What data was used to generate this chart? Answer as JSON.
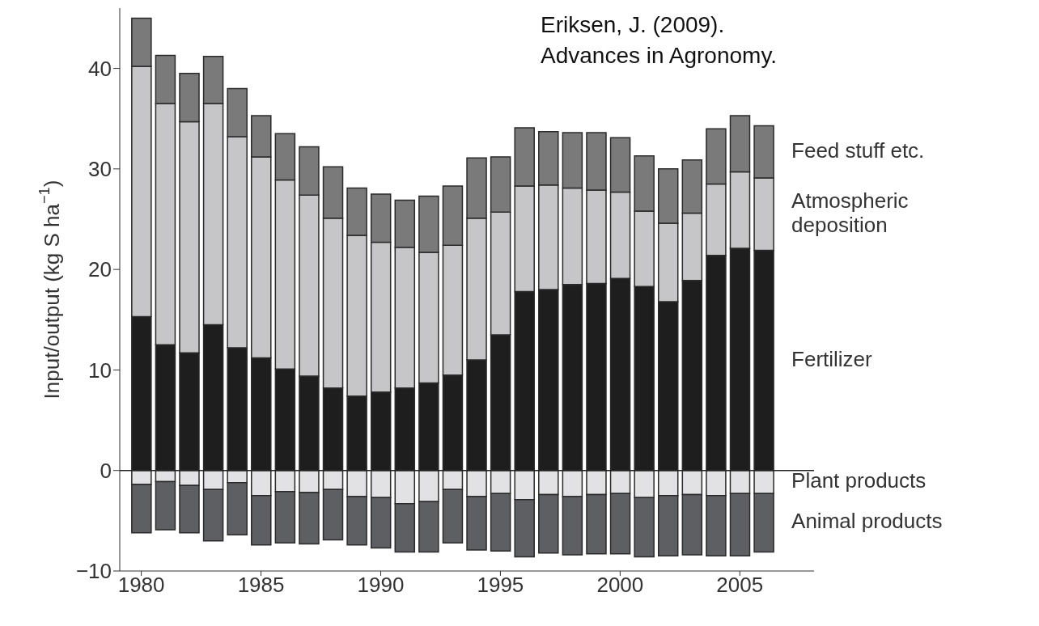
{
  "chart_data": {
    "type": "bar",
    "stacked": true,
    "x": [
      1980,
      1981,
      1982,
      1983,
      1984,
      1985,
      1986,
      1987,
      1988,
      1989,
      1990,
      1991,
      1992,
      1993,
      1994,
      1995,
      1996,
      1997,
      1998,
      1999,
      2000,
      2001,
      2002,
      2003,
      2004,
      2005,
      2006
    ],
    "series": [
      {
        "name": "Fertilizer",
        "color": "#1e1e1e",
        "values": [
          15.3,
          12.5,
          11.7,
          14.5,
          12.2,
          11.2,
          10.1,
          9.4,
          8.2,
          7.4,
          7.8,
          8.2,
          8.7,
          9.5,
          11.0,
          13.5,
          17.8,
          18.0,
          18.5,
          18.6,
          19.1,
          18.3,
          16.8,
          18.9,
          21.4,
          22.1,
          21.9
        ]
      },
      {
        "name": "Atmospheric deposition",
        "color": "#c6c6c8",
        "values": [
          24.9,
          24.0,
          23.0,
          22.0,
          21.0,
          20.0,
          18.8,
          18.0,
          16.9,
          16.0,
          14.9,
          14.0,
          13.0,
          12.9,
          14.1,
          12.2,
          10.5,
          10.4,
          9.6,
          9.3,
          8.6,
          7.5,
          7.8,
          6.7,
          7.1,
          7.6,
          7.2
        ]
      },
      {
        "name": "Feed stuff etc.",
        "color": "#7a7a7a",
        "values": [
          4.8,
          4.8,
          4.8,
          4.7,
          4.8,
          4.1,
          4.6,
          4.8,
          5.1,
          4.7,
          4.8,
          4.7,
          5.6,
          5.9,
          6.0,
          5.5,
          5.8,
          5.3,
          5.5,
          5.7,
          5.4,
          5.5,
          5.4,
          5.3,
          5.5,
          5.6,
          5.2
        ]
      },
      {
        "name": "Plant products",
        "color": "#e2e2e4",
        "values": [
          -1.4,
          -1.1,
          -1.5,
          -1.9,
          -1.2,
          -2.5,
          -2.1,
          -2.2,
          -1.9,
          -2.6,
          -2.7,
          -3.3,
          -3.1,
          -1.9,
          -2.6,
          -2.3,
          -2.9,
          -2.4,
          -2.6,
          -2.4,
          -2.3,
          -2.7,
          -2.5,
          -2.4,
          -2.5,
          -2.3,
          -2.3
        ]
      },
      {
        "name": "Animal products",
        "color": "#5e5f63",
        "values": [
          -4.8,
          -4.8,
          -4.7,
          -5.1,
          -5.2,
          -4.9,
          -5.1,
          -5.1,
          -5.0,
          -4.8,
          -5.0,
          -4.8,
          -5.0,
          -5.3,
          -5.3,
          -5.7,
          -5.7,
          -5.8,
          -5.8,
          -5.9,
          -6.0,
          -5.9,
          -6.0,
          -6.0,
          -6.0,
          -6.2,
          -5.8
        ]
      }
    ],
    "ylabel": "Input/output (kg S ha$^{−1}$)",
    "xlim": [
      1979.1,
      2008.1
    ],
    "xticks": [
      1980,
      1985,
      1990,
      1995,
      2000,
      2005
    ],
    "ylim": [
      -10,
      46
    ],
    "yticks": [
      -10,
      0,
      10,
      20,
      30,
      40
    ],
    "ref_lines": [
      {
        "axis": "y",
        "value": 0
      }
    ],
    "legend": "right",
    "annotations": [
      "Eriksen, J. (2009). Advances in Agronomy."
    ]
  }
}
